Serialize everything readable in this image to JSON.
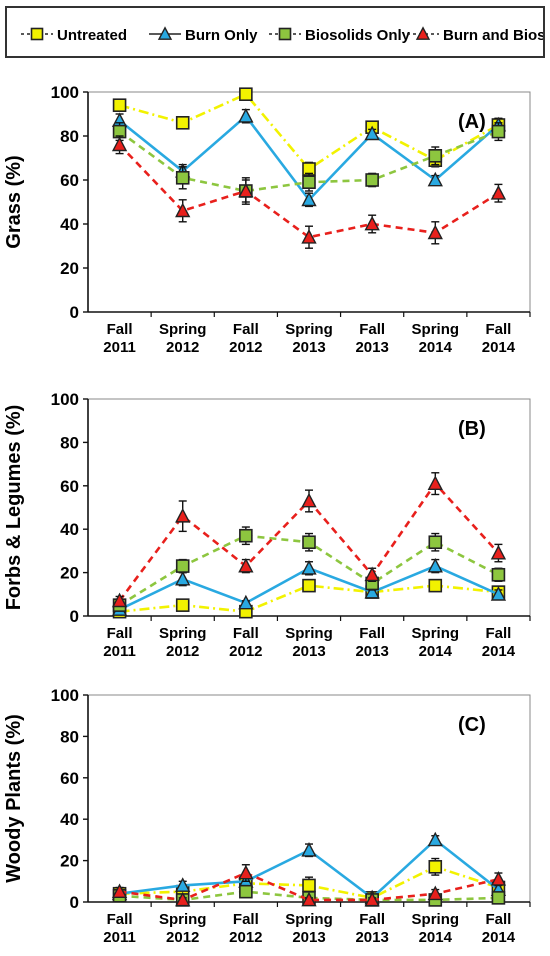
{
  "legend": {
    "items": [
      {
        "label": "Untreated",
        "color": "#f2f200",
        "marker": "square",
        "dash": "dashdot"
      },
      {
        "label": "Burn Only",
        "color": "#29a9e1",
        "marker": "triangle",
        "dash": "solid"
      },
      {
        "label": "Biosolids Only",
        "color": "#8dc63f",
        "marker": "square",
        "dash": "dash"
      },
      {
        "label": "Burn and Biosolids",
        "color": "#e8201c",
        "marker": "triangle",
        "dash": "dash"
      }
    ]
  },
  "chart_data": [
    {
      "type": "line",
      "panel_label": "(A)",
      "ylabel": "Grass (%)",
      "ylim": [
        0,
        100
      ],
      "yticks": [
        0,
        20,
        40,
        60,
        80,
        100
      ],
      "categories": [
        "Fall\n2011",
        "Spring\n2012",
        "Fall\n2012",
        "Spring\n2013",
        "Fall\n2013",
        "Spring\n2014",
        "Fall\n2014"
      ],
      "series": [
        {
          "name": "Untreated",
          "values": [
            94,
            86,
            99,
            65,
            84,
            69,
            85
          ],
          "errors": [
            2,
            2,
            1,
            3,
            2,
            3,
            3
          ]
        },
        {
          "name": "Burn Only",
          "values": [
            87,
            64,
            89,
            51,
            81,
            60,
            85
          ],
          "errors": [
            3,
            3,
            3,
            3,
            2,
            2,
            3
          ]
        },
        {
          "name": "Biosolids Only",
          "values": [
            82,
            61,
            55,
            59,
            60,
            71,
            82
          ],
          "errors": [
            4,
            5,
            5,
            4,
            3,
            4,
            4
          ]
        },
        {
          "name": "Burn and Biosolids",
          "values": [
            76,
            46,
            55,
            34,
            40,
            36,
            54
          ],
          "errors": [
            4,
            5,
            6,
            5,
            4,
            5,
            4
          ]
        }
      ]
    },
    {
      "type": "line",
      "panel_label": "(B)",
      "ylabel": "Forbs & Legumes (%)",
      "ylim": [
        0,
        100
      ],
      "yticks": [
        0,
        20,
        40,
        60,
        80,
        100
      ],
      "categories": [
        "Fall\n2011",
        "Spring\n2012",
        "Fall\n2012",
        "Spring\n2013",
        "Fall\n2013",
        "Spring\n2014",
        "Fall\n2014"
      ],
      "series": [
        {
          "name": "Untreated",
          "values": [
            2,
            5,
            2,
            14,
            11,
            14,
            11
          ],
          "errors": [
            1,
            1,
            1,
            2,
            2,
            2,
            2
          ]
        },
        {
          "name": "Burn Only",
          "values": [
            3,
            17,
            6,
            22,
            11,
            23,
            10
          ],
          "errors": [
            1,
            3,
            1,
            3,
            2,
            3,
            2
          ]
        },
        {
          "name": "Biosolids Only",
          "values": [
            5,
            23,
            37,
            34,
            15,
            34,
            19
          ],
          "errors": [
            2,
            3,
            4,
            4,
            3,
            4,
            3
          ]
        },
        {
          "name": "Burn and Biosolids",
          "values": [
            7,
            46,
            23,
            53,
            19,
            61,
            29
          ],
          "errors": [
            2,
            7,
            3,
            5,
            3,
            5,
            4
          ]
        }
      ]
    },
    {
      "type": "line",
      "panel_label": "(C)",
      "ylabel": "Woody Plants (%)",
      "ylim": [
        0,
        100
      ],
      "yticks": [
        0,
        20,
        40,
        60,
        80,
        100
      ],
      "categories": [
        "Fall\n2011",
        "Spring\n2012",
        "Fall\n2012",
        "Spring\n2013",
        "Fall\n2013",
        "Spring\n2014",
        "Fall\n2014"
      ],
      "series": [
        {
          "name": "Untreated",
          "values": [
            4,
            5,
            9,
            8,
            2,
            17,
            7
          ],
          "errors": [
            1,
            2,
            3,
            4,
            1,
            4,
            2
          ]
        },
        {
          "name": "Burn Only",
          "values": [
            4,
            8,
            10,
            25,
            2,
            30,
            6
          ],
          "errors": [
            1,
            2,
            3,
            3,
            1,
            2,
            2
          ]
        },
        {
          "name": "Biosolids Only",
          "values": [
            3,
            1,
            5,
            2,
            1,
            1,
            2
          ],
          "errors": [
            1,
            1,
            2,
            1,
            1,
            1,
            1
          ]
        },
        {
          "name": "Burn and Biosolids",
          "values": [
            5,
            1,
            14,
            1,
            1,
            4,
            11
          ],
          "errors": [
            2,
            1,
            4,
            1,
            1,
            2,
            3
          ]
        }
      ]
    }
  ]
}
